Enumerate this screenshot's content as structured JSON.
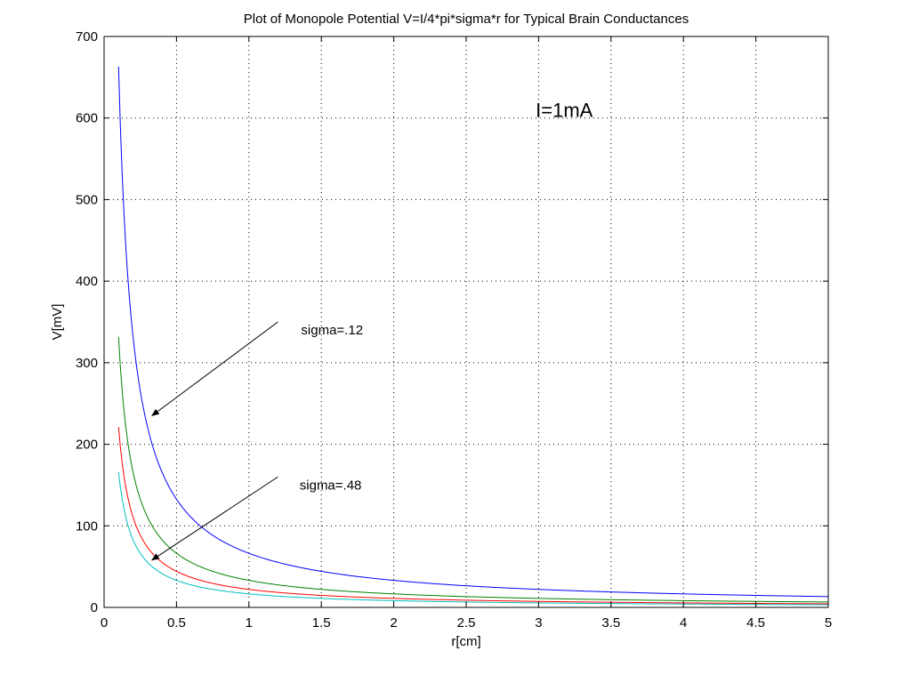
{
  "chart_data": {
    "type": "line",
    "title": "Plot of Monopole Potential V=I/4*pi*sigma*r for Typical Brain Conductances",
    "xlabel": "r[cm]",
    "ylabel": "V[mV]",
    "xlim": [
      0,
      5
    ],
    "ylim": [
      0,
      700
    ],
    "xticks": [
      0,
      0.5,
      1,
      1.5,
      2,
      2.5,
      3,
      3.5,
      4,
      4.5,
      5
    ],
    "xtick_labels": [
      "0",
      "0.5",
      "1",
      "1.5",
      "2",
      "2.5",
      "3",
      "3.5",
      "4",
      "4.5",
      "5"
    ],
    "yticks": [
      0,
      100,
      200,
      300,
      400,
      500,
      600,
      700
    ],
    "ytick_labels": [
      "0",
      "100",
      "200",
      "300",
      "400",
      "500",
      "600",
      "700"
    ],
    "grid": true,
    "grid_style": "dotted",
    "r_start": 0.1,
    "r_end": 5,
    "current_mA": 1,
    "series": [
      {
        "sigma": 0.12,
        "color": "#0000ff"
      },
      {
        "sigma": 0.24,
        "color": "#008000"
      },
      {
        "sigma": 0.36,
        "color": "#ff0000"
      },
      {
        "sigma": 0.48,
        "color": "#00bfbf"
      }
    ],
    "annotations": [
      {
        "text": "I=1mA",
        "x": 2.98,
        "y": 610
      },
      {
        "text": "sigma=.12",
        "x": 1.36,
        "y": 340,
        "arrow_from": [
          1.2,
          350
        ],
        "arrow_to": [
          0.33,
          235
        ]
      },
      {
        "text": "sigma=.48",
        "x": 1.35,
        "y": 150,
        "arrow_from": [
          1.2,
          160
        ],
        "arrow_to": [
          0.33,
          58
        ]
      }
    ]
  }
}
